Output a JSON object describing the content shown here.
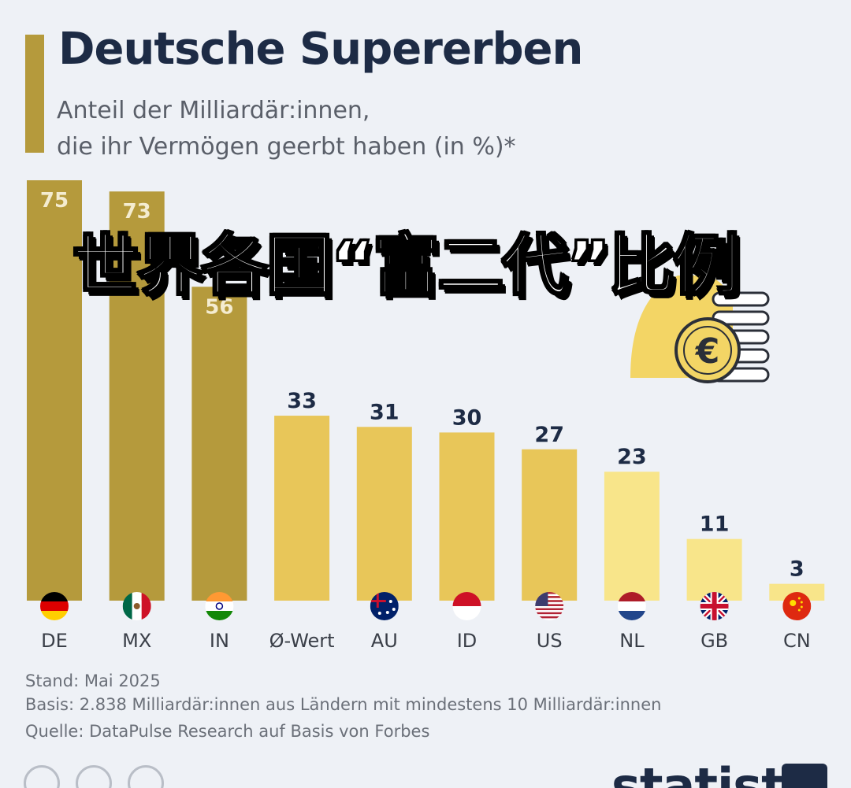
{
  "chart_data": {
    "type": "bar",
    "title": "Deutsche Supererben",
    "subtitle_lines": [
      "Anteil der Milliardär:innen,",
      "die ihr Vermögen geerbt haben (in %)*"
    ],
    "categories": [
      "DE",
      "MX",
      "IN",
      "Ø-Wert",
      "AU",
      "ID",
      "US",
      "NL",
      "GB",
      "CN"
    ],
    "values": [
      75,
      73,
      56,
      33,
      31,
      30,
      27,
      23,
      11,
      3
    ],
    "ylim": [
      0,
      75
    ],
    "grid": false,
    "legend": "none",
    "value_labels": true
  },
  "colors": {
    "dark_gold": "#b59a3c",
    "mid_yellow": "#e8c659",
    "light_yellow": "#f8e58a",
    "text_dark": "#1d2b45"
  },
  "overlay": {
    "text": "世界各国“富二代”比例"
  },
  "footer": {
    "stand": "Stand: Mai 2025",
    "basis": "Basis: 2.838 Milliardär:innen aus Ländern mit mindestens 10 Milliardär:innen",
    "source": "Quelle: DataPulse Research auf Basis von Forbes"
  },
  "brand": {
    "name": "statista"
  },
  "icons": {
    "flags": [
      "germany-flag-icon",
      "mexico-flag-icon",
      "india-flag-icon",
      "",
      "australia-flag-icon",
      "indonesia-flag-icon",
      "usa-flag-icon",
      "netherlands-flag-icon",
      "uk-flag-icon",
      "china-flag-icon"
    ],
    "illustration": "euro-coin-money-bag-icon"
  }
}
